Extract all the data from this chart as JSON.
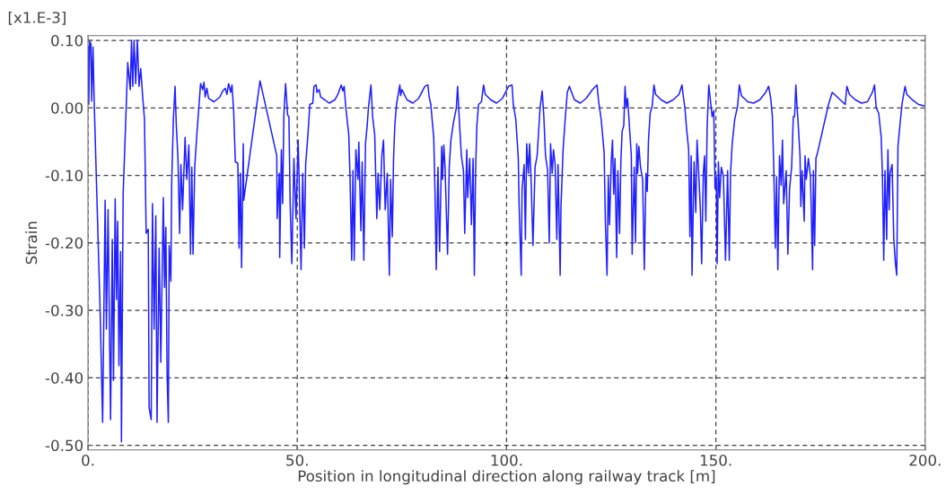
{
  "chart_data": {
    "type": "line",
    "xlabel": "Position in longitudinal direction along railway track [m]",
    "ylabel": "Strain",
    "annotations": [
      "[x1.E-3]"
    ],
    "xlim": [
      0,
      200
    ],
    "xticks": [
      {
        "value": 0,
        "label": "0."
      },
      {
        "value": 50,
        "label": "50."
      },
      {
        "value": 100,
        "label": "100."
      },
      {
        "value": 150,
        "label": "150."
      },
      {
        "value": 200,
        "label": "200."
      }
    ],
    "ylim": [
      -0.507,
      0.107
    ],
    "yticks": [
      {
        "value": 0.1,
        "label": "0.10"
      },
      {
        "value": 0,
        "label": "0.00"
      },
      {
        "value": -0.1,
        "label": "-0.10"
      },
      {
        "value": -0.2,
        "label": "-0.20"
      },
      {
        "value": -0.3,
        "label": "-0.30"
      },
      {
        "value": -0.4,
        "label": "-0.40"
      },
      {
        "value": -0.5,
        "label": "-0.50"
      }
    ],
    "grid": true,
    "marker": "none",
    "line_style": "solid",
    "series": [
      {
        "color": "#1f1fff",
        "x": [
          0.0,
          0.2,
          0.4,
          0.7,
          0.9,
          1.2,
          1.5,
          2.9,
          3.5,
          4.1,
          4.4,
          4.8,
          5.4,
          5.8,
          6.1,
          6.5,
          6.8,
          7.1,
          7.4,
          7.8,
          8.0,
          8.4,
          8.9,
          9.5,
          10.1,
          10.4,
          10.7,
          11.0,
          11.4,
          11.8,
          12.2,
          12.6,
          13.1,
          13.5,
          13.9,
          14.4,
          14.6,
          15.1,
          15.4,
          15.8,
          16.2,
          16.5,
          17.0,
          17.4,
          18.0,
          18.3,
          18.6,
          18.9,
          19.2,
          19.4,
          19.8,
          20.0,
          20.4,
          20.8,
          21.1,
          21.5,
          21.9,
          22.2,
          22.6,
          23.2,
          23.6,
          24.1,
          24.5,
          24.8,
          25.1,
          25.5,
          26.0,
          26.5,
          26.9,
          27.4,
          27.7,
          28.0,
          28.4,
          28.8,
          30.1,
          31.5,
          32.2,
          32.8,
          33.2,
          33.6,
          34.1,
          34.4,
          34.8,
          35.2,
          35.8,
          36.1,
          36.4,
          36.7,
          37.1,
          37.2,
          41.1,
          45.1,
          45.2,
          45.7,
          45.8,
          46.2,
          46.5,
          46.8,
          47.2,
          47.7,
          48.0,
          48.3,
          48.7,
          49.2,
          49.7,
          50.2,
          50.4,
          50.9,
          51.3,
          51.7,
          52.0,
          52.6,
          53.0,
          53.7,
          54.0,
          54.5,
          54.7,
          55.2,
          55.6,
          56.5,
          57.6,
          59.0,
          59.7,
          60.5,
          60.9,
          61.2,
          61.6,
          62.3,
          62.6,
          63.0,
          63.3,
          63.6,
          64.0,
          64.5,
          64.7,
          65.2,
          65.5,
          65.9,
          66.3,
          66.7,
          67.0,
          67.6,
          68.0,
          68.5,
          69.0,
          69.3,
          69.7,
          70.2,
          70.6,
          71.0,
          71.5,
          72.0,
          72.3,
          72.7,
          73.0,
          73.3,
          73.7,
          74.5,
          74.7,
          75.0,
          76.2,
          77.6,
          79.0,
          80.5,
          81.2,
          81.5,
          81.9,
          82.6,
          82.9,
          83.2,
          83.6,
          84.0,
          84.5,
          84.7,
          85.0,
          85.3,
          85.9,
          86.3,
          86.7,
          87.3,
          88.0,
          88.3,
          88.7,
          89.2,
          89.7,
          90.0,
          90.5,
          90.7,
          91.2,
          91.6,
          92.0,
          92.3,
          92.6,
          92.9,
          93.3,
          94.0,
          94.5,
          94.9,
          96.2,
          97.6,
          99.0,
          100.5,
          101.3,
          101.6,
          102.2,
          102.8,
          103.0,
          103.5,
          103.7,
          104.2,
          104.5,
          104.8,
          105.2,
          105.5,
          105.9,
          106.3,
          106.8,
          107.3,
          108.0,
          108.5,
          108.9,
          109.3,
          109.8,
          110.2,
          110.5,
          110.9,
          111.2,
          111.6,
          112.0,
          112.3,
          112.8,
          113.0,
          113.5,
          114.0,
          114.5,
          115.0,
          116.2,
          117.6,
          119.0,
          120.5,
          121.6,
          122.0,
          122.6,
          123.3,
          123.6,
          124.0,
          124.3,
          124.6,
          125.0,
          125.3,
          125.6,
          125.9,
          126.3,
          126.6,
          127.0,
          127.3,
          127.6,
          128.0,
          128.3,
          128.6,
          128.9,
          129.2,
          129.8,
          130.0,
          130.5,
          130.8,
          131.1,
          131.3,
          131.6,
          132.0,
          132.5,
          132.9,
          133.3,
          133.6,
          133.9,
          134.3,
          134.8,
          135.2,
          135.6,
          136.9,
          138.3,
          139.8,
          141.2,
          141.9,
          142.2,
          142.6,
          143.0,
          143.5,
          143.8,
          144.1,
          144.3,
          144.8,
          145.2,
          145.5,
          145.9,
          146.3,
          146.6,
          147.0,
          147.3,
          147.6,
          147.9,
          148.3,
          148.8,
          149.1,
          149.5,
          149.8,
          150.1,
          150.3,
          150.6,
          150.9,
          151.3,
          151.8,
          152.3,
          152.8,
          153.2,
          153.5,
          153.9,
          154.5,
          155.2,
          155.6,
          156.1,
          157.6,
          159.0,
          160.5,
          161.9,
          162.6,
          163.1,
          163.5,
          163.8,
          164.2,
          164.5,
          164.8,
          165.2,
          165.6,
          165.9,
          166.2,
          166.8,
          167.2,
          167.6,
          168.1,
          168.5,
          168.8,
          169.1,
          169.4,
          169.6,
          170.1,
          170.3,
          170.6,
          171.1,
          171.3,
          171.6,
          172.1,
          172.6,
          173.1,
          173.3,
          173.6,
          173.9,
          174.3,
          176.9,
          177.8,
          180.9,
          181.3,
          181.9,
          183.3,
          184.8,
          186.2,
          187.4,
          187.9,
          188.3,
          188.9,
          189.5,
          189.8,
          190.1,
          190.4,
          190.8,
          191.1,
          191.4,
          191.6,
          192.1,
          192.5,
          192.9,
          193.2,
          193.5,
          194.1,
          194.5,
          195.2,
          195.6,
          196.9,
          198.4,
          199.8
        ],
        "values": [
          0.09,
          0.005,
          0.098,
          0.095,
          0.01,
          0.09,
          0.005,
          -0.3,
          -0.466,
          -0.137,
          -0.328,
          -0.151,
          -0.462,
          -0.195,
          -0.404,
          -0.135,
          -0.284,
          -0.168,
          -0.382,
          -0.213,
          -0.495,
          -0.128,
          -0.04,
          0.067,
          0.027,
          0.1,
          0.032,
          0.1,
          0.036,
          0.1,
          0.032,
          0.058,
          0.014,
          -0.017,
          -0.186,
          -0.18,
          -0.444,
          -0.462,
          -0.142,
          -0.328,
          -0.16,
          -0.466,
          -0.208,
          -0.377,
          -0.133,
          -0.266,
          -0.177,
          -0.395,
          -0.466,
          -0.204,
          -0.257,
          -0.111,
          -0.017,
          0.032,
          -0.026,
          -0.075,
          -0.186,
          -0.084,
          -0.151,
          -0.044,
          -0.106,
          -0.055,
          -0.217,
          -0.088,
          -0.217,
          -0.088,
          -0.04,
          0.002,
          0.036,
          0.027,
          0.038,
          0.016,
          0.029,
          0.014,
          0.009,
          0.016,
          0.025,
          0.029,
          0.02,
          0.036,
          0.023,
          0.034,
          -0.004,
          -0.08,
          -0.082,
          -0.208,
          -0.097,
          -0.237,
          -0.053,
          -0.137,
          0.04,
          -0.071,
          -0.164,
          -0.097,
          -0.222,
          -0.062,
          -0.142,
          -0.011,
          0.036,
          -0.011,
          -0.013,
          -0.142,
          -0.231,
          -0.075,
          -0.164,
          -0.048,
          -0.097,
          -0.24,
          -0.097,
          -0.208,
          -0.084,
          -0.035,
          0.005,
          0.007,
          0.032,
          0.034,
          0.023,
          0.027,
          0.016,
          0.012,
          0.007,
          0.012,
          0.02,
          0.034,
          0.025,
          0.032,
          0.0,
          -0.04,
          -0.102,
          -0.226,
          -0.093,
          -0.226,
          -0.062,
          -0.106,
          -0.051,
          -0.182,
          -0.08,
          -0.226,
          -0.053,
          -0.026,
          0.0,
          0.034,
          -0.013,
          -0.04,
          -0.164,
          -0.097,
          -0.151,
          -0.071,
          -0.048,
          -0.151,
          -0.097,
          -0.248,
          -0.106,
          -0.191,
          -0.075,
          -0.026,
          0.005,
          0.034,
          0.018,
          0.027,
          0.012,
          0.007,
          0.014,
          0.032,
          0.034,
          0.016,
          0.005,
          -0.044,
          -0.124,
          -0.24,
          -0.088,
          -0.213,
          -0.057,
          -0.106,
          -0.055,
          -0.088,
          -0.217,
          -0.088,
          -0.048,
          -0.022,
          0.0,
          0.032,
          -0.017,
          -0.071,
          -0.093,
          -0.186,
          -0.062,
          -0.133,
          -0.075,
          -0.173,
          -0.075,
          -0.248,
          -0.093,
          -0.026,
          0.005,
          0.009,
          0.034,
          0.02,
          0.012,
          0.007,
          0.014,
          0.032,
          0.034,
          0.005,
          -0.017,
          -0.075,
          -0.146,
          -0.248,
          -0.12,
          -0.084,
          -0.195,
          -0.053,
          -0.097,
          -0.053,
          -0.115,
          -0.204,
          -0.088,
          -0.071,
          0.0,
          0.025,
          -0.013,
          -0.071,
          -0.093,
          -0.2,
          -0.053,
          -0.097,
          -0.062,
          -0.084,
          -0.195,
          -0.084,
          -0.248,
          -0.146,
          -0.062,
          -0.017,
          0.023,
          0.032,
          0.012,
          0.007,
          0.014,
          0.027,
          0.034,
          0.009,
          -0.017,
          -0.066,
          -0.168,
          -0.248,
          -0.102,
          -0.173,
          -0.08,
          -0.048,
          -0.128,
          -0.075,
          -0.222,
          -0.093,
          -0.186,
          -0.08,
          -0.035,
          -0.026,
          0.032,
          0.0,
          0.014,
          -0.013,
          -0.071,
          -0.217,
          -0.088,
          -0.2,
          -0.053,
          -0.097,
          -0.057,
          -0.088,
          -0.106,
          -0.24,
          -0.097,
          -0.124,
          -0.048,
          -0.008,
          0.003,
          0.034,
          0.02,
          0.012,
          0.007,
          0.012,
          0.02,
          0.034,
          0.018,
          0.0,
          -0.031,
          -0.062,
          -0.191,
          -0.071,
          -0.248,
          -0.08,
          -0.155,
          -0.048,
          -0.097,
          -0.151,
          -0.231,
          -0.097,
          -0.071,
          -0.168,
          -0.031,
          0.034,
          0.005,
          -0.013,
          -0.004,
          -0.12,
          -0.102,
          -0.231,
          -0.08,
          -0.133,
          -0.088,
          -0.102,
          -0.226,
          -0.093,
          -0.226,
          -0.097,
          -0.053,
          -0.017,
          0.003,
          0.034,
          0.018,
          0.009,
          0.007,
          0.012,
          0.023,
          0.032,
          0.014,
          -0.013,
          -0.08,
          -0.208,
          -0.102,
          -0.24,
          -0.071,
          -0.115,
          -0.048,
          -0.142,
          -0.093,
          -0.217,
          -0.12,
          -0.088,
          -0.013,
          -0.013,
          0.034,
          0.0,
          -0.017,
          -0.071,
          -0.146,
          -0.093,
          -0.168,
          -0.071,
          -0.106,
          -0.075,
          -0.102,
          -0.24,
          -0.093,
          -0.204,
          -0.075,
          -0.066,
          0.005,
          0.023,
          0.005,
          0.032,
          0.02,
          0.012,
          0.007,
          0.009,
          0.023,
          0.034,
          0.0,
          -0.008,
          -0.044,
          -0.102,
          -0.226,
          -0.093,
          -0.195,
          -0.062,
          -0.151,
          -0.097,
          -0.084,
          -0.195,
          -0.231,
          -0.248,
          -0.057,
          -0.017,
          0.007,
          0.032,
          0.02,
          0.012,
          0.005,
          0.003
        ]
      }
    ]
  }
}
